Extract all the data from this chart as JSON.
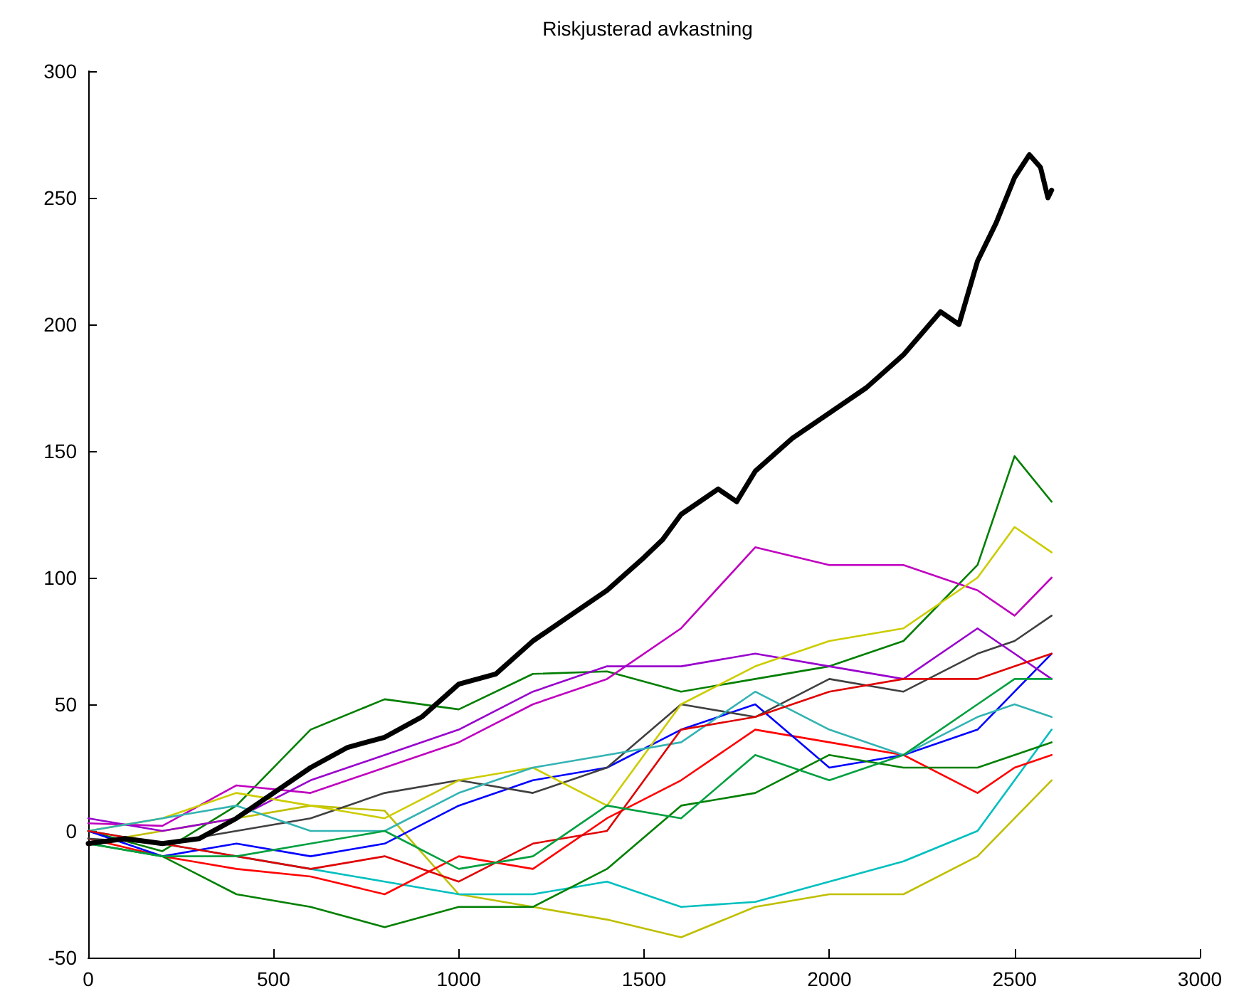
{
  "chart_data": {
    "type": "line",
    "title": "Riskjusterad avkastning",
    "x": [
      0,
      200,
      400,
      600,
      800,
      1000,
      1200,
      1400,
      1600,
      1800,
      2000,
      2200,
      2400,
      2500,
      2600
    ],
    "xlim": [
      0,
      3000
    ],
    "xticks": [
      0,
      500,
      1000,
      1500,
      2000,
      2500,
      3000
    ],
    "ylim": [
      -50,
      300
    ],
    "yticks": [
      -50,
      0,
      50,
      100,
      150,
      200,
      250,
      300
    ],
    "grid": false,
    "marker": "none",
    "line_style": "solid",
    "series": [
      {
        "color": "#007f00",
        "values": [
          0,
          -8,
          10,
          40,
          52,
          48,
          62,
          63,
          55,
          60,
          65,
          75,
          105,
          148,
          130
        ]
      },
      {
        "color": "#bf00bf",
        "values": [
          3,
          2,
          18,
          15,
          25,
          35,
          50,
          60,
          80,
          112,
          105,
          105,
          95,
          85,
          100
        ]
      },
      {
        "color": "#bfbf00",
        "values": [
          -5,
          0,
          5,
          10,
          8,
          -25,
          -30,
          -35,
          -42,
          -30,
          -25,
          -25,
          -10,
          5,
          20
        ]
      },
      {
        "color": "#00bfbf",
        "values": [
          0,
          -5,
          -10,
          -15,
          -20,
          -25,
          -25,
          -20,
          -30,
          -28,
          -20,
          -12,
          0,
          20,
          40
        ]
      },
      {
        "color": "#ff0000",
        "values": [
          -3,
          -10,
          -15,
          -18,
          -25,
          -10,
          -15,
          5,
          20,
          40,
          35,
          30,
          15,
          25,
          30
        ]
      },
      {
        "color": "#0000ff",
        "values": [
          0,
          -10,
          -5,
          -10,
          -5,
          10,
          20,
          25,
          40,
          50,
          25,
          30,
          40,
          55,
          70
        ]
      },
      {
        "color": "#404040",
        "values": [
          -3,
          -5,
          0,
          5,
          15,
          20,
          15,
          25,
          50,
          45,
          60,
          55,
          70,
          75,
          85
        ]
      },
      {
        "color": "#008000",
        "values": [
          -5,
          -10,
          -25,
          -30,
          -38,
          -30,
          -30,
          -15,
          10,
          15,
          30,
          25,
          25,
          30,
          35
        ]
      },
      {
        "color": "#9900cc",
        "values": [
          5,
          0,
          5,
          20,
          30,
          40,
          55,
          65,
          65,
          70,
          65,
          60,
          80,
          70,
          60
        ]
      },
      {
        "color": "#cccc00",
        "values": [
          0,
          5,
          15,
          10,
          5,
          20,
          25,
          10,
          50,
          65,
          75,
          80,
          100,
          120,
          110
        ]
      },
      {
        "color": "#33b3b3",
        "values": [
          0,
          5,
          10,
          0,
          0,
          15,
          25,
          30,
          35,
          55,
          40,
          30,
          45,
          50,
          45
        ]
      },
      {
        "color": "#e00000",
        "values": [
          0,
          -5,
          -10,
          -15,
          -10,
          -20,
          -5,
          0,
          40,
          45,
          55,
          60,
          60,
          65,
          70
        ]
      },
      {
        "color": "#00a040",
        "values": [
          -5,
          -10,
          -10,
          -5,
          0,
          -15,
          -10,
          10,
          5,
          30,
          20,
          30,
          50,
          60,
          60
        ]
      },
      {
        "color": "#000000",
        "x": [
          0,
          100,
          200,
          300,
          400,
          500,
          600,
          700,
          800,
          900,
          1000,
          1100,
          1200,
          1300,
          1400,
          1500,
          1550,
          1600,
          1700,
          1750,
          1800,
          1900,
          2000,
          2100,
          2200,
          2300,
          2350,
          2400,
          2450,
          2500,
          2540,
          2570,
          2590,
          2600
        ],
        "values": [
          -5,
          -3,
          -5,
          -3,
          5,
          15,
          25,
          33,
          37,
          45,
          58,
          62,
          75,
          85,
          95,
          108,
          115,
          125,
          135,
          130,
          142,
          155,
          165,
          175,
          188,
          205,
          200,
          225,
          240,
          258,
          267,
          262,
          250,
          253
        ]
      }
    ]
  }
}
